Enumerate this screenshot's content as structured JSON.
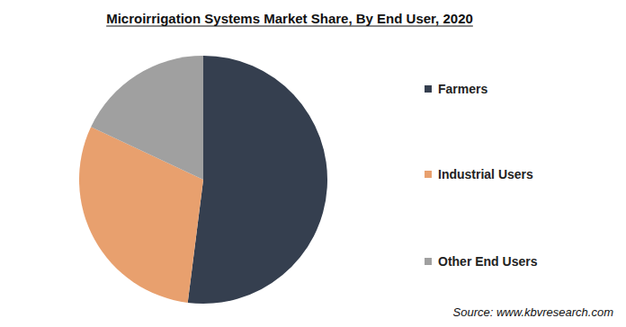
{
  "chart_data": {
    "type": "pie",
    "title": "Microirrigation Systems Market Share, By End User, 2020",
    "categories": [
      "Farmers",
      "Industrial Users",
      "Other End Users"
    ],
    "values": [
      52,
      30,
      18
    ],
    "colors": [
      "#353f4f",
      "#e8a06e",
      "#a0a0a0"
    ],
    "legend": "right",
    "source": "Source: www.kbvresearch.com"
  }
}
